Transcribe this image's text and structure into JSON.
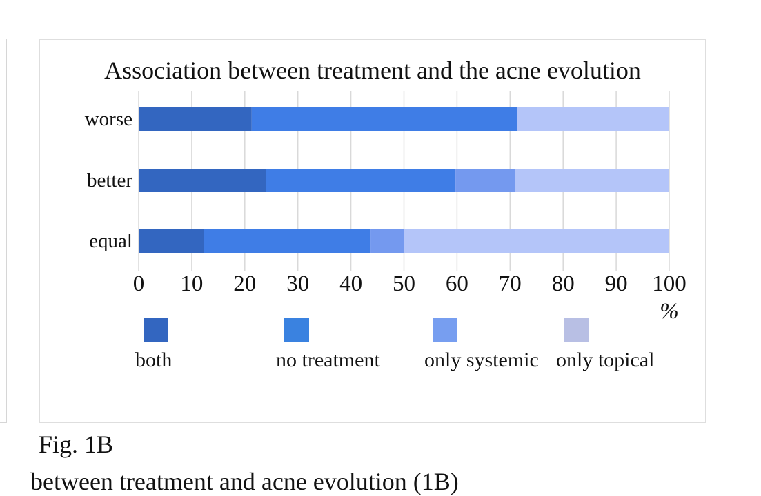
{
  "figure_label": "Fig. 1B",
  "bottom_text": "between treatment and acne evolution (1B)",
  "chart_data": {
    "type": "bar",
    "orientation": "horizontal",
    "stacked": true,
    "title": "Association between treatment and the acne evolution",
    "xlabel": "%",
    "ylabel": "",
    "xlim": [
      0,
      100
    ],
    "xticks": [
      "0",
      "10",
      "20",
      "30",
      "40",
      "50",
      "60",
      "70",
      "80",
      "90",
      "100"
    ],
    "categories": [
      "worse",
      "better",
      "equal"
    ],
    "series": [
      {
        "name": "both",
        "values": [
          21.3,
          24,
          12.3
        ],
        "color": "#3366c0"
      },
      {
        "name": "no treatment",
        "values": [
          50,
          35.7,
          31.4
        ],
        "color": "#3f7de6"
      },
      {
        "name": "only systemic",
        "values": [
          0,
          11.3,
          6.3
        ],
        "color": "#7499ef"
      },
      {
        "name": "only topical",
        "values": [
          28.7,
          29,
          50
        ],
        "color": "#b4c5f9"
      }
    ],
    "legend": {
      "position": "bottom",
      "swatch_colors": [
        "#3366c0",
        "#3a82e0",
        "#779ef0",
        "#b8bfe4"
      ]
    },
    "grid": true
  }
}
